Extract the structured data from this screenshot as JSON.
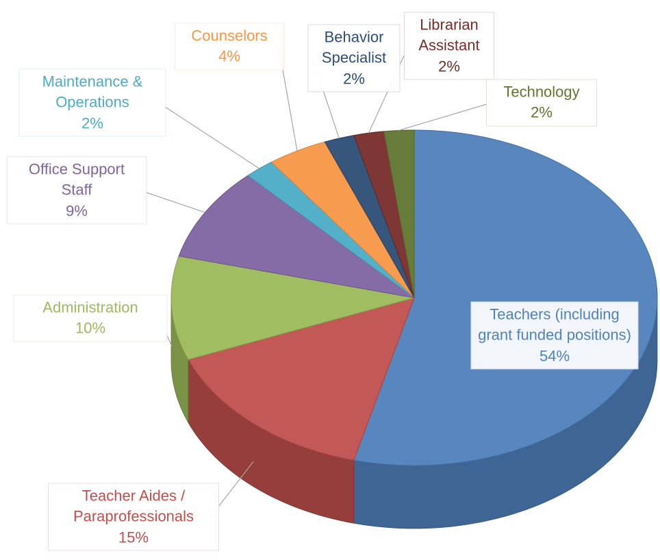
{
  "chart_data": {
    "type": "pie",
    "categories": [
      "Teachers (including grant funded positions)",
      "Teacher Aides / Paraprofessionals",
      "Administration",
      "Office Support Staff",
      "Maintenance & Operations",
      "Counselors",
      "Behavior Specialist",
      "Librarian Assistant",
      "Technology"
    ],
    "values": [
      54,
      15,
      10,
      9,
      2,
      4,
      2,
      2,
      2
    ],
    "value_labels": [
      "54%",
      "15%",
      "10%",
      "9%",
      "2%",
      "4%",
      "2%",
      "2%",
      "2%"
    ],
    "colors": [
      "#4f81bd",
      "#c0504d",
      "#9bbb59",
      "#8064a2",
      "#4bacc6",
      "#f79646",
      "#2c4d75",
      "#772c2a",
      "#5f7530"
    ]
  }
}
